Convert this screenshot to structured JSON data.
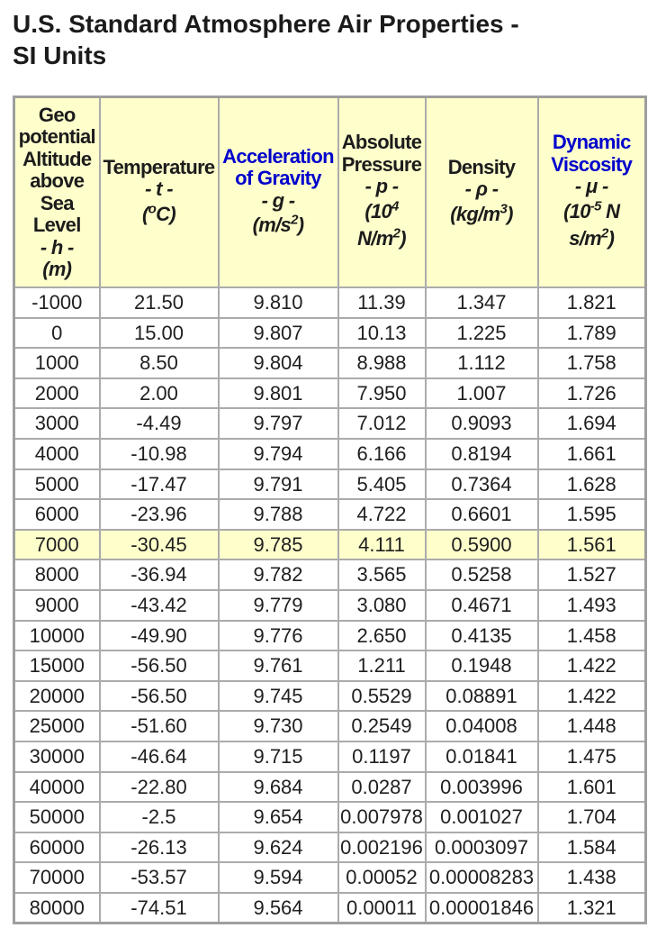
{
  "page": {
    "title_lines": [
      "U.S. Standard Atmosphere Air Properties -",
      "SI Units"
    ]
  },
  "colors": {
    "header_bg": "#FFFFCC",
    "highlight_bg": "#FFFFCC",
    "border_inner": "#ABABAB",
    "border_outer": "#9E9E9E",
    "link_blue": "#0000CC",
    "text": "#1F1F1F"
  },
  "table": {
    "highlight_row_index": 8,
    "columns": [
      {
        "name": "geopotential-altitude",
        "plain_label": "Geo potential Altitude above Sea Level - h - (m)",
        "lines": [
          [
            {
              "t": "Geo"
            }
          ],
          [
            {
              "t": "potential"
            }
          ],
          [
            {
              "t": "Altitude"
            }
          ],
          [
            {
              "t": "above"
            }
          ],
          [
            {
              "t": "Sea"
            }
          ],
          [
            {
              "t": "Level"
            }
          ],
          [
            {
              "t": "- h -",
              "i": true
            }
          ],
          [
            {
              "t": "(m)",
              "i": true
            }
          ]
        ]
      },
      {
        "name": "temperature",
        "plain_label": "Temperature - t - (oC)",
        "lines": [
          [
            {
              "t": "Temperature"
            }
          ],
          [
            {
              "t": "- t -",
              "i": true
            }
          ],
          [
            {
              "t": "(",
              "i": true
            },
            {
              "t": "o",
              "i": true,
              "sup": true
            },
            {
              "t": "C)",
              "i": true
            }
          ]
        ]
      },
      {
        "name": "acceleration-of-gravity",
        "plain_label": "Acceleration of Gravity - g - (m/s2)",
        "lines": [
          [
            {
              "t": "Acceleration",
              "link": true
            }
          ],
          [
            {
              "t": "of Gravity",
              "link": true
            }
          ],
          [
            {
              "t": "- g -",
              "i": true
            }
          ],
          [
            {
              "t": "(m/s",
              "i": true
            },
            {
              "t": "2",
              "i": true,
              "sup": true
            },
            {
              "t": ")",
              "i": true
            }
          ]
        ]
      },
      {
        "name": "absolute-pressure",
        "plain_label": "Absolute Pressure - p - (104 N/m2)",
        "lines": [
          [
            {
              "t": "Absolute"
            }
          ],
          [
            {
              "t": "Pressure"
            }
          ],
          [
            {
              "t": "- p -",
              "i": true
            }
          ],
          [
            {
              "t": "(10",
              "i": true
            },
            {
              "t": "4",
              "i": true,
              "sup": true
            }
          ],
          [
            {
              "t": "N/m",
              "i": true
            },
            {
              "t": "2",
              "i": true,
              "sup": true
            },
            {
              "t": ")",
              "i": true
            }
          ]
        ]
      },
      {
        "name": "density",
        "plain_label": "Density - ρ - (kg/m3)",
        "lines": [
          [
            {
              "t": "Density"
            }
          ],
          [
            {
              "t": "- ρ -",
              "i": true
            }
          ],
          [
            {
              "t": "(kg/m",
              "i": true
            },
            {
              "t": "3",
              "i": true,
              "sup": true
            },
            {
              "t": ")",
              "i": true
            }
          ]
        ]
      },
      {
        "name": "dynamic-viscosity",
        "plain_label": "Dynamic Viscosity - μ - (10-5 N s/m2)",
        "lines": [
          [
            {
              "t": "Dynamic",
              "link": true
            }
          ],
          [
            {
              "t": "Viscosity",
              "link": true
            }
          ],
          [
            {
              "t": "- μ -",
              "i": true
            }
          ],
          [
            {
              "t": "(10",
              "i": true
            },
            {
              "t": "-5",
              "i": true,
              "sup": true
            },
            {
              "t": " N",
              "i": true
            }
          ],
          [
            {
              "t": "s/m",
              "i": true
            },
            {
              "t": "2",
              "i": true,
              "sup": true
            },
            {
              "t": ")",
              "i": true
            }
          ]
        ]
      }
    ],
    "rows": [
      [
        "-1000",
        "21.50",
        "9.810",
        "11.39",
        "1.347",
        "1.821"
      ],
      [
        "0",
        "15.00",
        "9.807",
        "10.13",
        "1.225",
        "1.789"
      ],
      [
        "1000",
        "8.50",
        "9.804",
        "8.988",
        "1.112",
        "1.758"
      ],
      [
        "2000",
        "2.00",
        "9.801",
        "7.950",
        "1.007",
        "1.726"
      ],
      [
        "3000",
        "-4.49",
        "9.797",
        "7.012",
        "0.9093",
        "1.694"
      ],
      [
        "4000",
        "-10.98",
        "9.794",
        "6.166",
        "0.8194",
        "1.661"
      ],
      [
        "5000",
        "-17.47",
        "9.791",
        "5.405",
        "0.7364",
        "1.628"
      ],
      [
        "6000",
        "-23.96",
        "9.788",
        "4.722",
        "0.6601",
        "1.595"
      ],
      [
        "7000",
        "-30.45",
        "9.785",
        "4.111",
        "0.5900",
        "1.561"
      ],
      [
        "8000",
        "-36.94",
        "9.782",
        "3.565",
        "0.5258",
        "1.527"
      ],
      [
        "9000",
        "-43.42",
        "9.779",
        "3.080",
        "0.4671",
        "1.493"
      ],
      [
        "10000",
        "-49.90",
        "9.776",
        "2.650",
        "0.4135",
        "1.458"
      ],
      [
        "15000",
        "-56.50",
        "9.761",
        "1.211",
        "0.1948",
        "1.422"
      ],
      [
        "20000",
        "-56.50",
        "9.745",
        "0.5529",
        "0.08891",
        "1.422"
      ],
      [
        "25000",
        "-51.60",
        "9.730",
        "0.2549",
        "0.04008",
        "1.448"
      ],
      [
        "30000",
        "-46.64",
        "9.715",
        "0.1197",
        "0.01841",
        "1.475"
      ],
      [
        "40000",
        "-22.80",
        "9.684",
        "0.0287",
        "0.003996",
        "1.601"
      ],
      [
        "50000",
        "-2.5",
        "9.654",
        "0.007978",
        "0.001027",
        "1.704"
      ],
      [
        "60000",
        "-26.13",
        "9.624",
        "0.002196",
        "0.0003097",
        "1.584"
      ],
      [
        "70000",
        "-53.57",
        "9.594",
        "0.00052",
        "0.00008283",
        "1.438"
      ],
      [
        "80000",
        "-74.51",
        "9.564",
        "0.00011",
        "0.00001846",
        "1.321"
      ]
    ]
  },
  "chart_data": {
    "type": "table",
    "title": "U.S. Standard Atmosphere Air Properties - SI Units",
    "columns": [
      "Geo potential Altitude above Sea Level - h - (m)",
      "Temperature - t - (oC)",
      "Acceleration of Gravity - g - (m/s2)",
      "Absolute Pressure - p - (10^4 N/m2)",
      "Density - rho - (kg/m3)",
      "Dynamic Viscosity - mu - (10^-5 N s/m2)"
    ],
    "rows": [
      [
        -1000,
        21.5,
        9.81,
        11.39,
        1.347,
        1.821
      ],
      [
        0,
        15.0,
        9.807,
        10.13,
        1.225,
        1.789
      ],
      [
        1000,
        8.5,
        9.804,
        8.988,
        1.112,
        1.758
      ],
      [
        2000,
        2.0,
        9.801,
        7.95,
        1.007,
        1.726
      ],
      [
        3000,
        -4.49,
        9.797,
        7.012,
        0.9093,
        1.694
      ],
      [
        4000,
        -10.98,
        9.794,
        6.166,
        0.8194,
        1.661
      ],
      [
        5000,
        -17.47,
        9.791,
        5.405,
        0.7364,
        1.628
      ],
      [
        6000,
        -23.96,
        9.788,
        4.722,
        0.6601,
        1.595
      ],
      [
        7000,
        -30.45,
        9.785,
        4.111,
        0.59,
        1.561
      ],
      [
        8000,
        -36.94,
        9.782,
        3.565,
        0.5258,
        1.527
      ],
      [
        9000,
        -43.42,
        9.779,
        3.08,
        0.4671,
        1.493
      ],
      [
        10000,
        -49.9,
        9.776,
        2.65,
        0.4135,
        1.458
      ],
      [
        15000,
        -56.5,
        9.761,
        1.211,
        0.1948,
        1.422
      ],
      [
        20000,
        -56.5,
        9.745,
        0.5529,
        0.08891,
        1.422
      ],
      [
        25000,
        -51.6,
        9.73,
        0.2549,
        0.04008,
        1.448
      ],
      [
        30000,
        -46.64,
        9.715,
        0.1197,
        0.01841,
        1.475
      ],
      [
        40000,
        -22.8,
        9.684,
        0.0287,
        0.003996,
        1.601
      ],
      [
        50000,
        -2.5,
        9.654,
        0.007978,
        0.001027,
        1.704
      ],
      [
        60000,
        -26.13,
        9.624,
        0.002196,
        0.0003097,
        1.584
      ],
      [
        70000,
        -53.57,
        9.594,
        0.00052,
        8.283e-05,
        1.438
      ],
      [
        80000,
        -74.51,
        9.564,
        0.00011,
        1.846e-05,
        1.321
      ]
    ]
  }
}
